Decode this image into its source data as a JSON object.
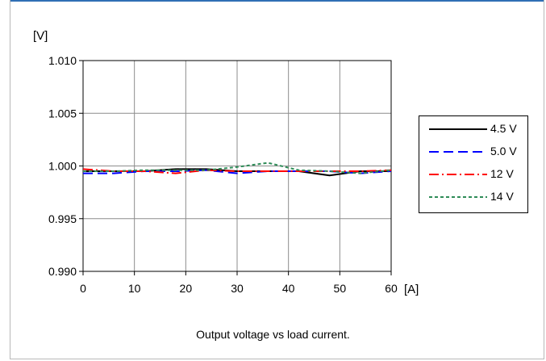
{
  "page": {
    "caption": "Output voltage vs load current.",
    "accent": "#2f6fb5"
  },
  "chart_data": {
    "type": "line",
    "ylabel": "[V]",
    "xlabel": "[A]",
    "x_ticks": [
      0,
      10,
      20,
      30,
      40,
      50,
      60
    ],
    "y_ticks": [
      1.01,
      1.005,
      1.0,
      0.995,
      0.99
    ],
    "y_tick_labels": [
      "1.010",
      "1.005",
      "1.000",
      "0.995",
      "0.990"
    ],
    "x_tick_labels": [
      "0",
      "10",
      "20",
      "30",
      "40",
      "50",
      "60"
    ],
    "xlim": [
      0,
      60
    ],
    "ylim": [
      0.99,
      1.01
    ],
    "grid": true,
    "legend_position": "right",
    "series": [
      {
        "name": "4.5 V",
        "color": "#000000",
        "dash": "solid",
        "x": [
          0,
          6,
          12,
          18,
          24,
          30,
          36,
          42,
          48,
          54,
          60
        ],
        "y": [
          0.9995,
          0.9995,
          0.9995,
          0.9997,
          0.9997,
          0.9995,
          0.9995,
          0.9995,
          0.9991,
          0.9995,
          0.9995
        ]
      },
      {
        "name": "5.0 V",
        "color": "#0000ff",
        "dash": "dashed",
        "x": [
          0,
          6,
          12,
          18,
          24,
          30,
          36,
          42,
          48,
          54,
          60
        ],
        "y": [
          0.9993,
          0.9993,
          0.9995,
          0.9995,
          0.9996,
          0.9993,
          0.9995,
          0.9995,
          0.9995,
          0.9993,
          0.9995
        ]
      },
      {
        "name": "12 V",
        "color": "#ff0000",
        "dash": "dashdot",
        "x": [
          0,
          6,
          12,
          18,
          24,
          30,
          36,
          42,
          48,
          54,
          60
        ],
        "y": [
          0.9997,
          0.9995,
          0.9995,
          0.9993,
          0.9996,
          0.9995,
          0.9995,
          0.9995,
          0.9995,
          0.9995,
          0.9996
        ]
      },
      {
        "name": "14 V",
        "color": "#2e8b57",
        "dash": "dotted",
        "x": [
          0,
          6,
          12,
          18,
          24,
          30,
          36,
          42,
          48,
          54,
          60
        ],
        "y": [
          0.9995,
          0.9995,
          0.9996,
          0.9996,
          0.9996,
          0.9999,
          1.0003,
          0.9996,
          0.9995,
          0.9993,
          0.9996
        ]
      }
    ]
  }
}
